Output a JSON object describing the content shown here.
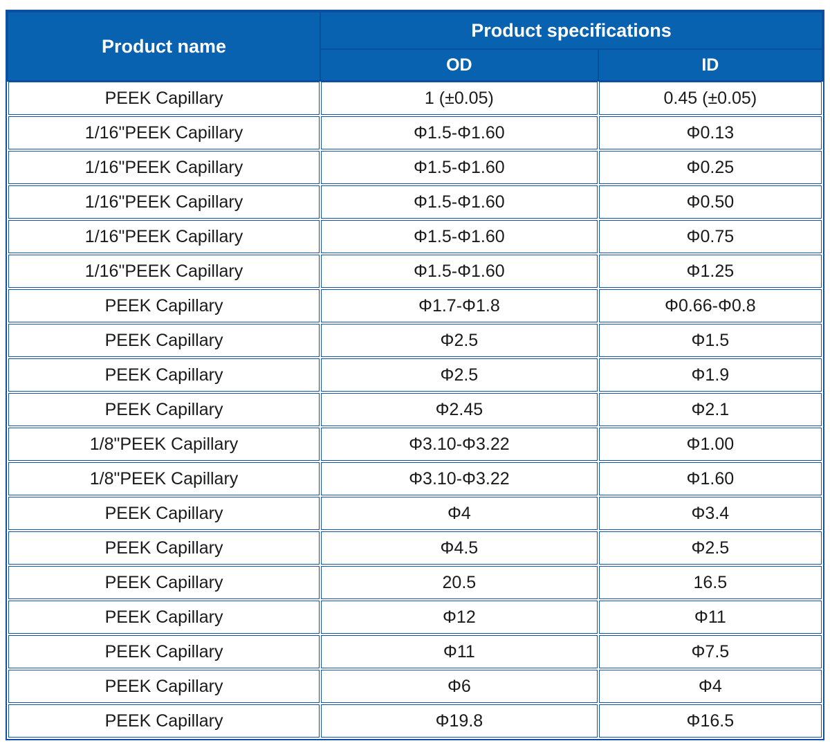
{
  "colors": {
    "header_bg": "#0862b0",
    "header_divider": "#0a4f9e",
    "cell_border": "#0d51a4",
    "header_text": "#ffffff",
    "body_text": "#1a1a1a",
    "page_bg": "#ffffff"
  },
  "table": {
    "header": {
      "product_name": "Product name",
      "product_specifications": "Product specifications",
      "od": "OD",
      "id": "ID"
    },
    "rows": [
      {
        "name": "PEEK Capillary",
        "od": "1 (±0.05)",
        "id": "0.45 (±0.05)"
      },
      {
        "name": "1/16\"PEEK Capillary",
        "od": "Φ1.5-Φ1.60",
        "id": "Φ0.13"
      },
      {
        "name": "1/16\"PEEK Capillary",
        "od": "Φ1.5-Φ1.60",
        "id": "Φ0.25"
      },
      {
        "name": "1/16\"PEEK Capillary",
        "od": "Φ1.5-Φ1.60",
        "id": "Φ0.50"
      },
      {
        "name": "1/16\"PEEK Capillary",
        "od": "Φ1.5-Φ1.60",
        "id": "Φ0.75"
      },
      {
        "name": "1/16\"PEEK Capillary",
        "od": "Φ1.5-Φ1.60",
        "id": "Φ1.25"
      },
      {
        "name": "PEEK Capillary",
        "od": "Φ1.7-Φ1.8",
        "id": "Φ0.66-Φ0.8"
      },
      {
        "name": "PEEK Capillary",
        "od": "Φ2.5",
        "id": "Φ1.5"
      },
      {
        "name": "PEEK Capillary",
        "od": "Φ2.5",
        "id": "Φ1.9"
      },
      {
        "name": "PEEK Capillary",
        "od": "Φ2.45",
        "id": "Φ2.1"
      },
      {
        "name": "1/8\"PEEK Capillary",
        "od": "Φ3.10-Φ3.22",
        "id": "Φ1.00"
      },
      {
        "name": "1/8\"PEEK Capillary",
        "od": "Φ3.10-Φ3.22",
        "id": "Φ1.60"
      },
      {
        "name": "PEEK Capillary",
        "od": "Φ4",
        "id": "Φ3.4"
      },
      {
        "name": "PEEK Capillary",
        "od": "Φ4.5",
        "id": "Φ2.5"
      },
      {
        "name": "PEEK Capillary",
        "od": "20.5",
        "id": "16.5"
      },
      {
        "name": "PEEK Capillary",
        "od": "Φ12",
        "id": "Φ11"
      },
      {
        "name": "PEEK Capillary",
        "od": "Φ11",
        "id": "Φ7.5"
      },
      {
        "name": "PEEK Capillary",
        "od": "Φ6",
        "id": "Φ4"
      },
      {
        "name": "PEEK Capillary",
        "od": "Φ19.8",
        "id": "Φ16.5"
      }
    ]
  }
}
